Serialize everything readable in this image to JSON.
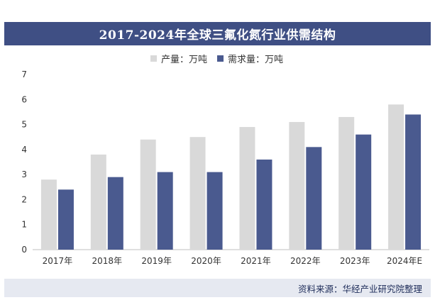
{
  "chart_data": {
    "type": "bar",
    "title": "2017-2024年全球三氟化氮行业供需结构",
    "categories": [
      "2017年",
      "2018年",
      "2019年",
      "2020年",
      "2021年",
      "2022年",
      "2023年",
      "2024年E"
    ],
    "series": [
      {
        "name": "产量：万吨",
        "values": [
          2.8,
          3.8,
          4.4,
          4.5,
          4.9,
          5.1,
          5.3,
          5.8
        ],
        "color": "#d9d9d9"
      },
      {
        "name": "需求量：万吨",
        "values": [
          2.4,
          2.9,
          3.1,
          3.1,
          3.6,
          4.1,
          4.6,
          5.4
        ],
        "color": "#4a5a8f"
      }
    ],
    "ylim": [
      0,
      7
    ],
    "yticks": [
      "0",
      "1",
      "2",
      "3",
      "4",
      "5",
      "6",
      "7"
    ],
    "xlabel": "",
    "ylabel": "",
    "grid": false,
    "legend_position": "top-center"
  },
  "source_text": "资料来源：华经产业研究院整理",
  "colors": {
    "title_bar": "#3f4f84",
    "footer_bar": "#e6e9f1",
    "production": "#d9d9d9",
    "demand": "#4a5a8f"
  }
}
